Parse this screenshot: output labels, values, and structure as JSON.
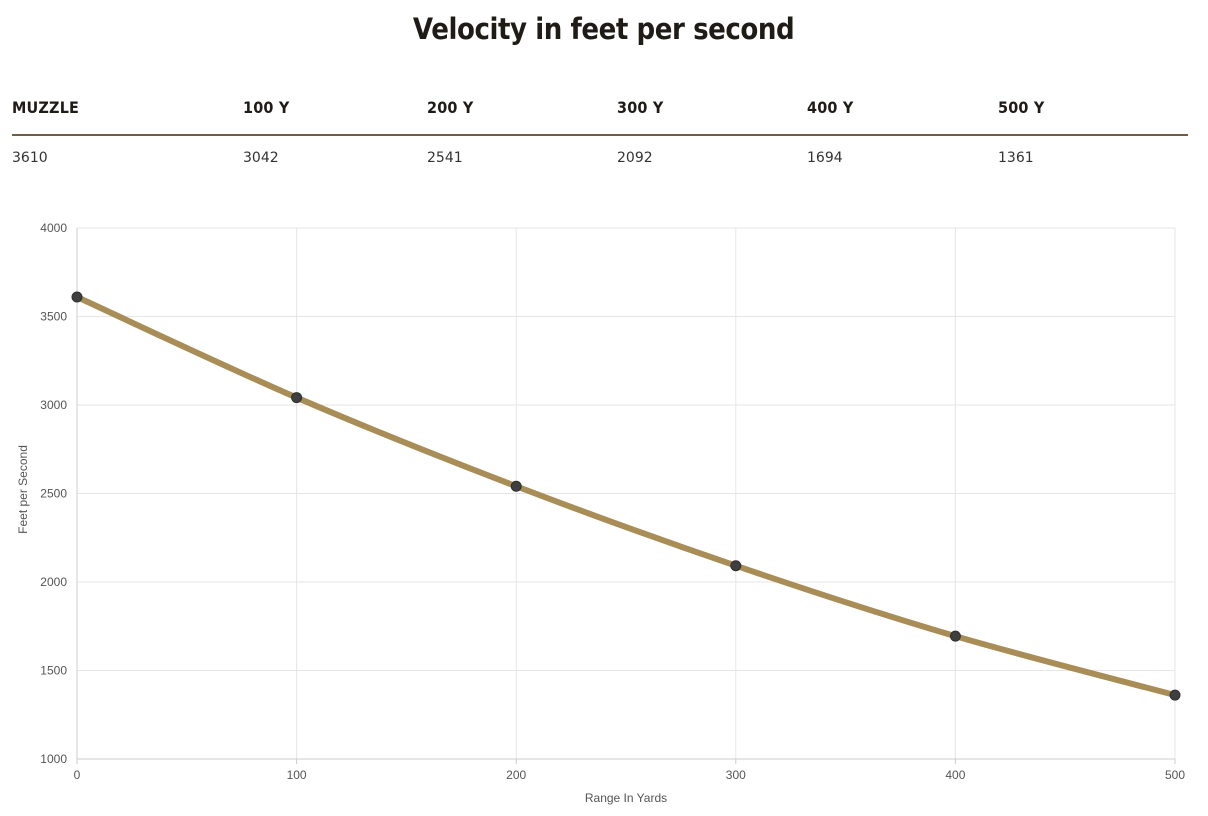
{
  "page": {
    "title": "Velocity in feet per second"
  },
  "velocity_table": {
    "headers": [
      "MUZZLE",
      "100 Y",
      "200 Y",
      "300 Y",
      "400 Y",
      "500 Y"
    ],
    "values": [
      "3610",
      "3042",
      "2541",
      "2092",
      "1694",
      "1361"
    ]
  },
  "chart_data": {
    "type": "line",
    "title": "",
    "xlabel": "Range In Yards",
    "ylabel": "Feet per Second",
    "x": [
      0,
      100,
      200,
      300,
      400,
      500
    ],
    "series": [
      {
        "values": [
          3610,
          3042,
          2541,
          2092,
          1694,
          1361
        ]
      }
    ],
    "xlim": [
      0,
      500
    ],
    "ylim": [
      1000,
      4000
    ],
    "x_ticks": [
      0,
      100,
      200,
      300,
      400,
      500
    ],
    "y_ticks": [
      1000,
      1500,
      2000,
      2500,
      3000,
      3500,
      4000
    ],
    "grid": true,
    "legend": "none",
    "colors": {
      "line": "#a88d57",
      "point": "#3f3f3f",
      "grid": "#e6e6e6",
      "axis": "#cccccc"
    }
  }
}
